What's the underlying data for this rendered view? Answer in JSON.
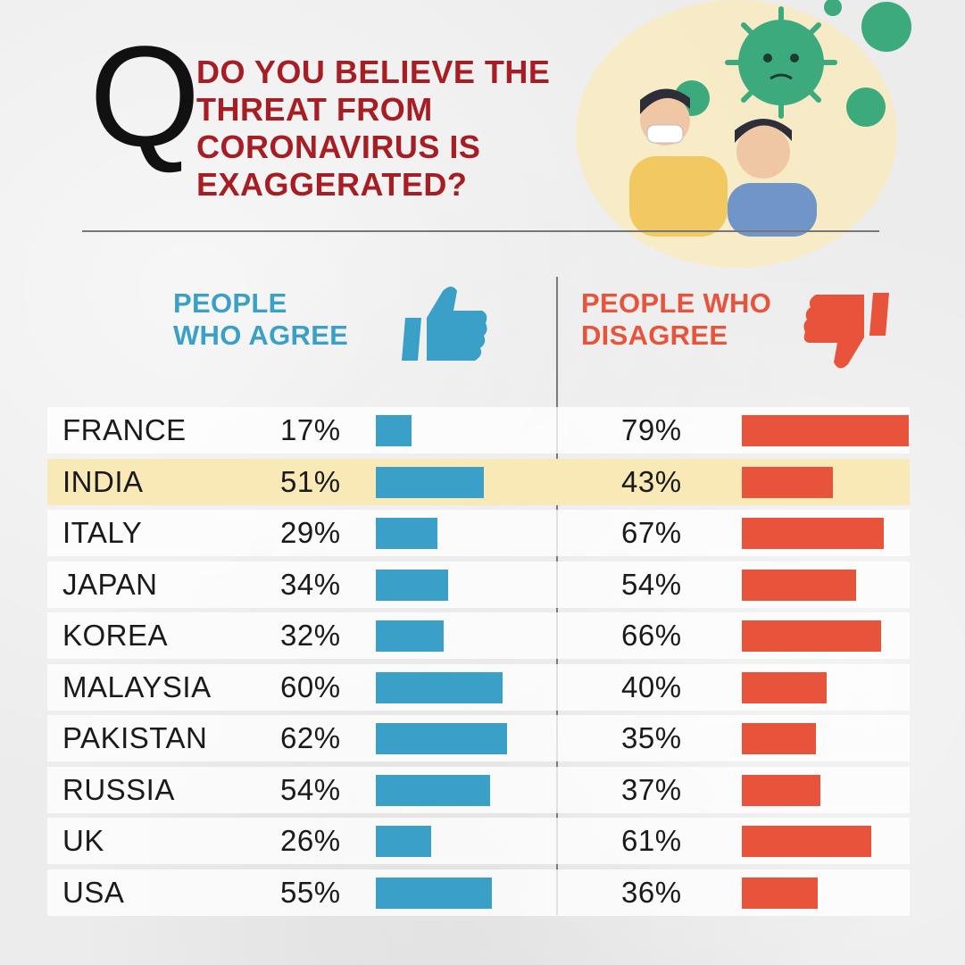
{
  "header": {
    "q_letter": "Q",
    "question_lines": [
      "DO YOU BELIEVE THE",
      "THREAT FROM",
      "CORONAVIRUS IS",
      "EXAGGERATED?"
    ]
  },
  "legend": {
    "agree_lines": [
      "PEOPLE",
      "WHO AGREE"
    ],
    "disagree_lines": [
      "PEOPLE WHO",
      "DISAGREE"
    ],
    "agree_icon": "thumbs-up-icon",
    "disagree_icon": "thumbs-down-icon"
  },
  "colors": {
    "agree": "#3aa0c8",
    "disagree": "#e8543b",
    "question": "#a61d24",
    "highlight_row": "#f8e9b7"
  },
  "chart_data": {
    "type": "bar",
    "categories": [
      "FRANCE",
      "INDIA",
      "ITALY",
      "JAPAN",
      "KOREA",
      "MALAYSIA",
      "PAKISTAN",
      "RUSSIA",
      "UK",
      "USA"
    ],
    "series": [
      {
        "name": "PEOPLE WHO AGREE",
        "values": [
          17,
          51,
          29,
          34,
          32,
          60,
          62,
          54,
          26,
          55
        ],
        "labels": [
          "17%",
          "51%",
          "29%",
          "34%",
          "32%",
          "60%",
          "62%",
          "54%",
          "26%",
          "55%"
        ]
      },
      {
        "name": "PEOPLE WHO DISAGREE",
        "values": [
          79,
          43,
          67,
          54,
          66,
          40,
          35,
          37,
          61,
          36
        ],
        "labels": [
          "79%",
          "43%",
          "67%",
          "54%",
          "66%",
          "40%",
          "35%",
          "37%",
          "61%",
          "36%"
        ]
      }
    ],
    "highlighted_category": "INDIA",
    "unit": "%"
  }
}
